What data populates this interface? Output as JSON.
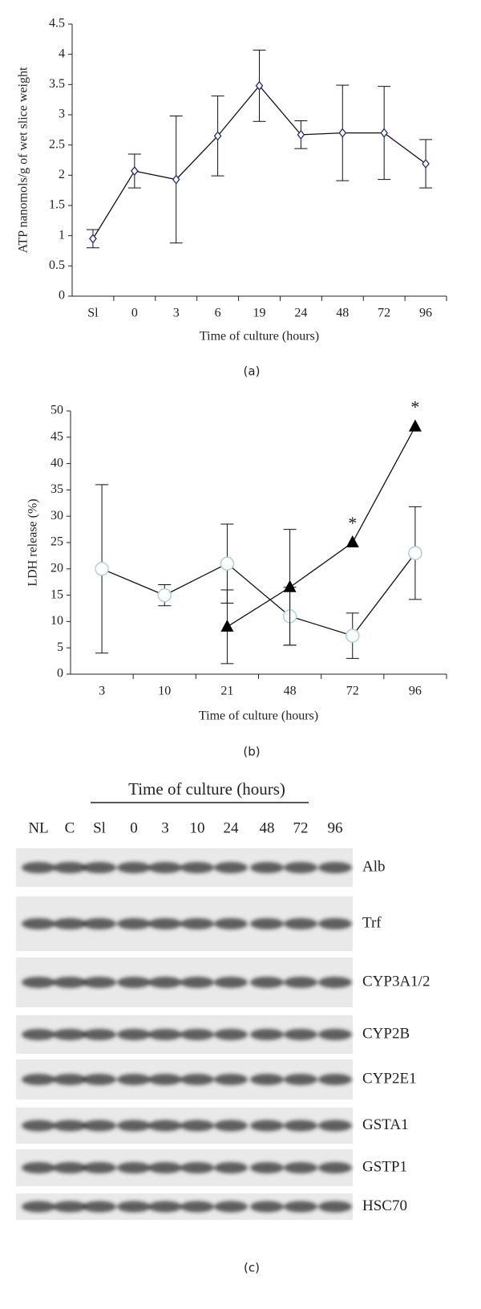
{
  "chart_data": [
    {
      "type": "line",
      "panel_label": "(a)",
      "ylabel": "ATP nanomols/g of wet slice weight",
      "xlabel": "Time of culture (hours)",
      "categories": [
        "Sl",
        "0",
        "3",
        "6",
        "19",
        "24",
        "48",
        "72",
        "96"
      ],
      "series": [
        {
          "color": "#1f2a7a",
          "marker": "diamond",
          "values": [
            0.95,
            2.07,
            1.93,
            2.65,
            3.48,
            2.67,
            2.7,
            2.7,
            2.19
          ],
          "errors": [
            0.15,
            0.28,
            1.05,
            0.66,
            0.59,
            0.23,
            0.79,
            0.77,
            0.4
          ]
        }
      ],
      "ylim": [
        0,
        4.5
      ],
      "yticks": [
        0,
        0.5,
        1,
        1.5,
        2,
        2.5,
        3,
        3.5,
        4,
        4.5
      ]
    },
    {
      "type": "line",
      "panel_label": "(b)",
      "ylabel": "LDH release (%)",
      "xlabel": "Time of culture (hours)",
      "categories": [
        "3",
        "10",
        "21",
        "48",
        "72",
        "96"
      ],
      "series": [
        {
          "color": "#a8d4d4",
          "marker": "circle",
          "values": [
            20,
            15,
            21,
            11,
            7.3,
            23
          ],
          "errors": [
            16,
            2,
            7.5,
            5.5,
            4.3,
            8.8
          ]
        },
        {
          "color": "#000000",
          "marker": "triangle",
          "values": [
            null,
            null,
            9,
            16.5,
            25,
            47
          ],
          "errors": [
            null,
            null,
            7,
            11,
            null,
            null
          ]
        }
      ],
      "annotations": [
        {
          "text": "*",
          "category": 4,
          "value": 25
        },
        {
          "text": "*",
          "category": 5,
          "value": 47
        }
      ],
      "ylim": [
        0,
        50
      ],
      "yticks": [
        0,
        5,
        10,
        15,
        20,
        25,
        30,
        35,
        40,
        45,
        50
      ]
    }
  ],
  "blot": {
    "panel_label": "(c)",
    "title": "Time of culture (hours)",
    "lanes": [
      "NL",
      "C",
      "Sl",
      "0",
      "3",
      "10",
      "24",
      "48",
      "72",
      "96"
    ],
    "proteins": [
      "Alb",
      "Trf",
      "CYP3A1/2",
      "CYP2B",
      "CYP2E1",
      "GSTA1",
      "GSTP1",
      "HSC70"
    ]
  }
}
